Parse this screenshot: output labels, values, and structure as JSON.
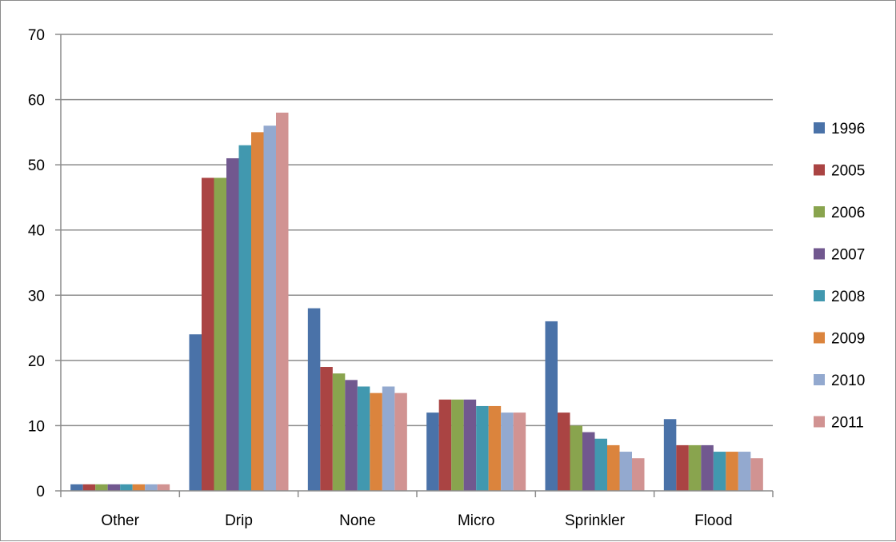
{
  "chart_data": {
    "type": "bar",
    "categories": [
      "Other",
      "Drip",
      "None",
      "Micro",
      "Sprinkler",
      "Flood"
    ],
    "series": [
      {
        "name": "1996",
        "color": "#4a72a8",
        "values": [
          1,
          24,
          28,
          12,
          26,
          11
        ]
      },
      {
        "name": "2005",
        "color": "#aa4443",
        "values": [
          1,
          48,
          19,
          14,
          12,
          7
        ]
      },
      {
        "name": "2006",
        "color": "#89a44e",
        "values": [
          1,
          48,
          18,
          14,
          10,
          7
        ]
      },
      {
        "name": "2007",
        "color": "#71588f",
        "values": [
          1,
          51,
          17,
          14,
          9,
          7
        ]
      },
      {
        "name": "2008",
        "color": "#4198af",
        "values": [
          1,
          53,
          16,
          13,
          8,
          6
        ]
      },
      {
        "name": "2009",
        "color": "#db843d",
        "values": [
          1,
          55,
          15,
          13,
          7,
          6
        ]
      },
      {
        "name": "2010",
        "color": "#93a9cf",
        "values": [
          1,
          56,
          16,
          12,
          6,
          6
        ]
      },
      {
        "name": "2011",
        "color": "#d19392",
        "values": [
          1,
          58,
          15,
          12,
          5,
          5
        ]
      }
    ],
    "ylim": [
      0,
      70
    ],
    "yticks": [
      0,
      10,
      20,
      30,
      40,
      50,
      60,
      70
    ],
    "title": "",
    "xlabel": "",
    "ylabel": "",
    "grid": true,
    "legend_position": "right"
  }
}
